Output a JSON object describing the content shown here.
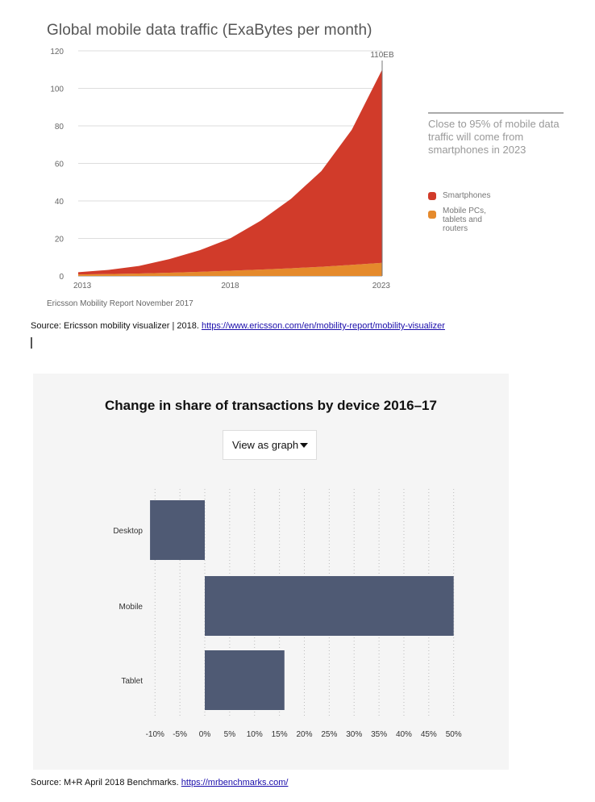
{
  "chart1": {
    "title": "Global mobile data traffic (ExaBytes per month)",
    "peak_label": "110EB",
    "note": "Close to 95% of mobile data traffic will come from smartphones in 2023",
    "legend": [
      {
        "label": "Smartphones",
        "color": "#d13b2a"
      },
      {
        "label": "Mobile PCs, tablets and routers",
        "color": "#e58a2c"
      }
    ],
    "credit": "Ericsson Mobility Report November 2017"
  },
  "chart2": {
    "title": "Change in share of transactions by device 2016–17",
    "select_value": "View as graph"
  },
  "sources": {
    "line1_bold": "Source:",
    "line1_text": " Ericsson mobility visualizer | 2018. ",
    "line1_link": "https://www.ericsson.com/en/mobility-report/mobility-visualizer",
    "line2_text": "Source: M+R April 2018 Benchmarks.  ",
    "line2_link": "https://mrbenchmarks.com/"
  },
  "chart_data": [
    {
      "type": "area",
      "title": "Global mobile data traffic (ExaBytes per month)",
      "x": [
        2013,
        2014,
        2015,
        2016,
        2017,
        2018,
        2019,
        2020,
        2021,
        2022,
        2023
      ],
      "x_tick_labels": [
        "2013",
        "2018",
        "2023"
      ],
      "ylim": [
        0,
        120
      ],
      "y_ticks": [
        0,
        20,
        40,
        60,
        80,
        100,
        120
      ],
      "stacked": true,
      "grid": true,
      "series": [
        {
          "name": "Mobile PCs, tablets and routers",
          "color": "#e58a2c",
          "values": [
            0.8,
            1.0,
            1.3,
            1.7,
            2.2,
            2.8,
            3.4,
            4.1,
            4.9,
            5.9,
            7.0
          ]
        },
        {
          "name": "Smartphones",
          "color": "#d13b2a",
          "values": [
            1.2,
            2.2,
            4.0,
            7.3,
            11.5,
            17.2,
            26.0,
            37.0,
            51.0,
            72.0,
            103.0
          ]
        }
      ],
      "annotations": [
        "110EB"
      ],
      "legend_position": "right"
    },
    {
      "type": "bar",
      "orientation": "horizontal",
      "title": "Change in share of transactions by device 2016–17",
      "categories": [
        "Desktop",
        "Mobile",
        "Tablet"
      ],
      "values": [
        -11,
        50,
        16
      ],
      "unit": "%",
      "xlim": [
        -10,
        50
      ],
      "x_ticks": [
        "-10%",
        "-5%",
        "0%",
        "5%",
        "10%",
        "15%",
        "20%",
        "25%",
        "30%",
        "35%",
        "40%",
        "45%",
        "50%"
      ],
      "color": "#4f5a74",
      "grid": "vertical dotted"
    }
  ]
}
